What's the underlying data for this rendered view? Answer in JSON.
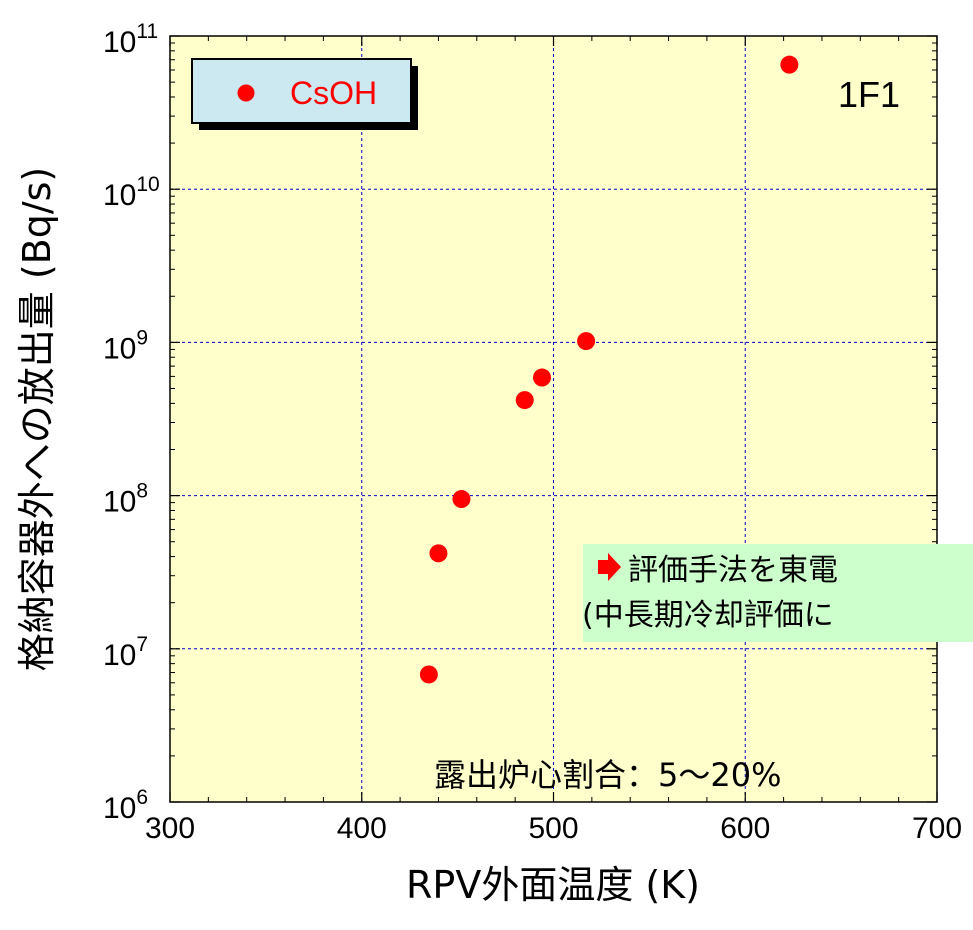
{
  "chart_data": {
    "type": "scatter",
    "xlabel": "RPV外面温度 (K)",
    "ylabel": "格納容器外への放出量 (Bq/s)",
    "xlim": [
      300,
      700
    ],
    "ylim": [
      1000000,
      100000000000
    ],
    "yscale": "log",
    "grid": true,
    "x_ticks": [
      "300",
      "400",
      "500",
      "600",
      "700"
    ],
    "y_ticks": [
      {
        "base": "10",
        "exp": "6"
      },
      {
        "base": "10",
        "exp": "7"
      },
      {
        "base": "10",
        "exp": "8"
      },
      {
        "base": "10",
        "exp": "9"
      },
      {
        "base": "10",
        "exp": "10"
      },
      {
        "base": "10",
        "exp": "11"
      }
    ],
    "legend": {
      "position": "top-left",
      "entries": [
        "CsOH"
      ]
    },
    "series": [
      {
        "name": "CsOH",
        "color": "#ff0000",
        "points": [
          {
            "x": 435,
            "y": 6800000
          },
          {
            "x": 440,
            "y": 42000000
          },
          {
            "x": 452,
            "y": 95000000
          },
          {
            "x": 485,
            "y": 420000000
          },
          {
            "x": 494,
            "y": 590000000
          },
          {
            "x": 517,
            "y": 1020000000
          },
          {
            "x": 623,
            "y": 65000000000
          }
        ]
      }
    ],
    "annotations": {
      "unit_label": "1F1",
      "core_exposure": "露出炉心割合：5～20%",
      "note_line1": "評価手法を東電",
      "note_line2": "(中長期冷却評価に"
    }
  },
  "colors": {
    "plot_background": "#ffffcc",
    "marker": "#ff0000",
    "legend_fill": "#cce8f0",
    "note_fill": "#ccffcc",
    "grid": "#0000cc",
    "arrow": "#ff0000"
  }
}
